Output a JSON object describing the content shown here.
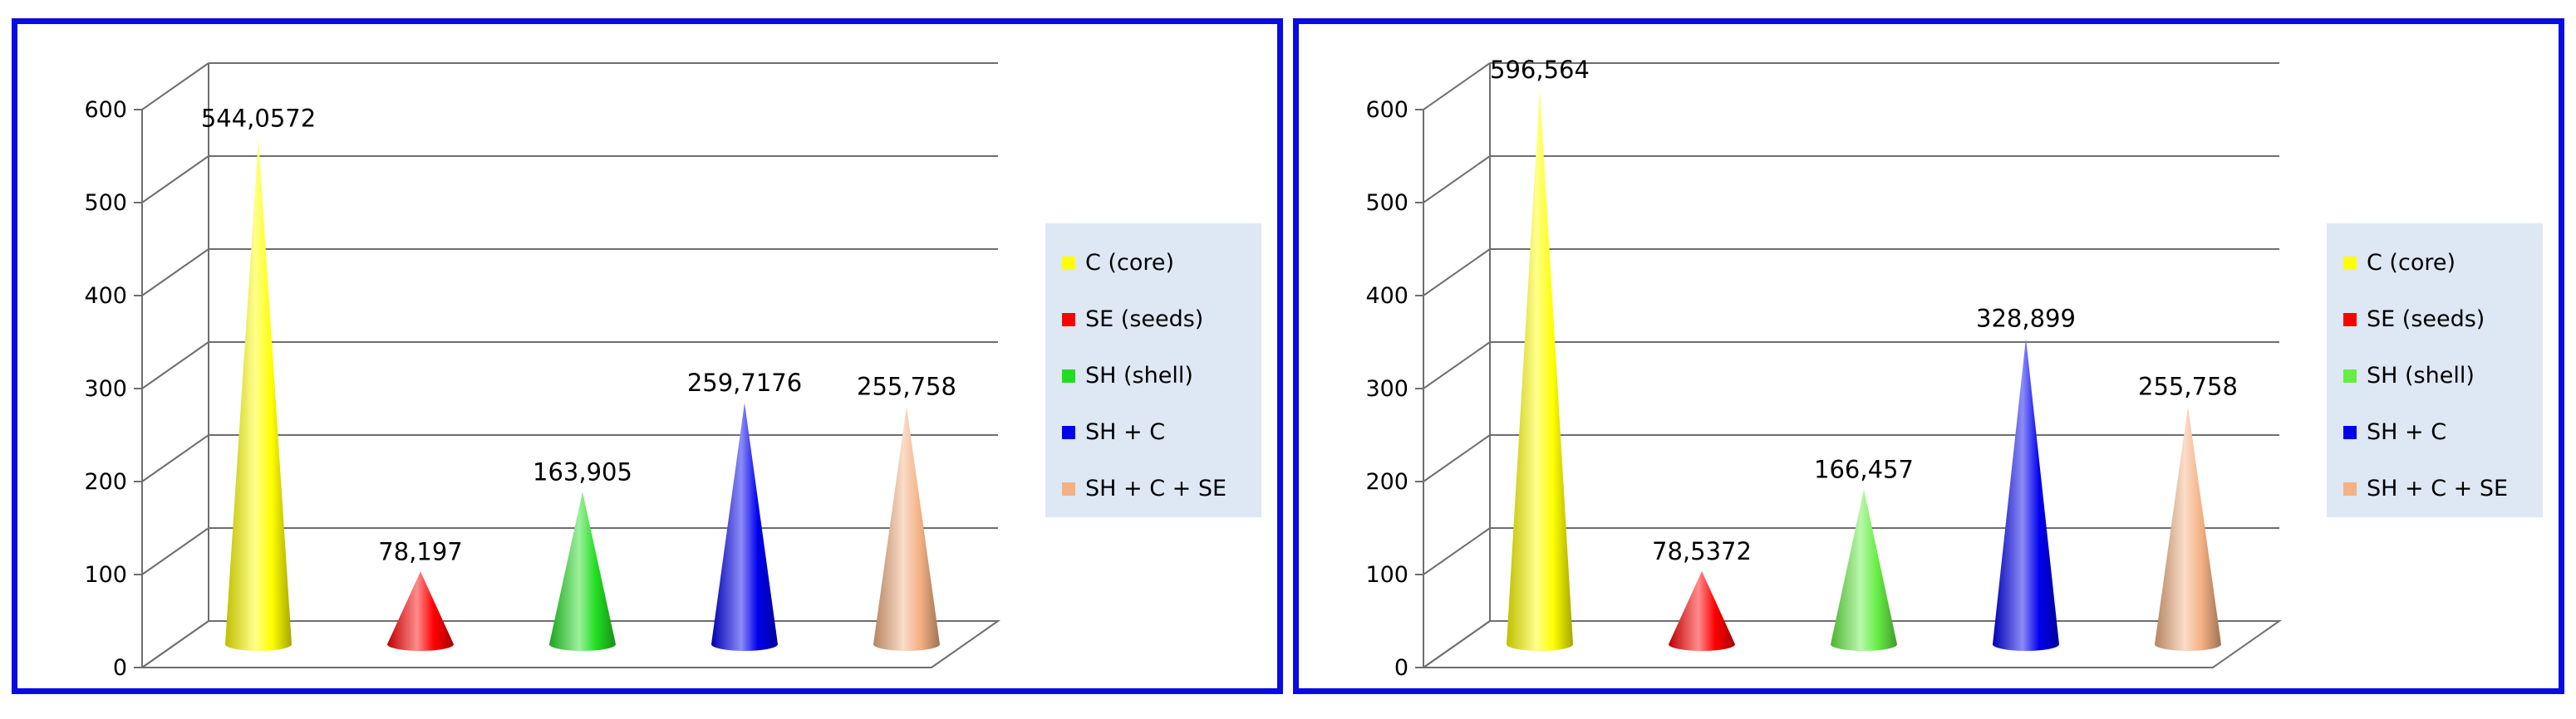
{
  "colors": {
    "frame": "#0a0ae6",
    "grid": "#6e6e6e",
    "legend_bg": "#dde8f4"
  },
  "chart_data": [
    {
      "type": "bar",
      "shape": "cone",
      "categories": [
        "C (core)",
        "SE (seeds)",
        "SH (shell)",
        "SH + C",
        "SH + C + SE"
      ],
      "values": [
        544.0572,
        78.197,
        163.905,
        259.7176,
        255.758
      ],
      "value_labels": [
        "544,0572",
        "78,197",
        "163,905",
        "259,7176",
        "255,758"
      ],
      "colors": [
        "#ffff00",
        "#ff0000",
        "#22dd22",
        "#0000ee",
        "#f4b183"
      ],
      "yticks": [
        "0",
        "100",
        "200",
        "300",
        "400",
        "500",
        "600"
      ],
      "ylim": [
        0,
        600
      ],
      "grid": true,
      "legend_position": "right",
      "title": "",
      "xlabel": "",
      "ylabel": ""
    },
    {
      "type": "bar",
      "shape": "cone",
      "categories": [
        "C (core)",
        "SE (seeds)",
        "SH (shell)",
        "SH + C",
        "SH + C + SE"
      ],
      "values": [
        596.564,
        78.5372,
        166.457,
        328.899,
        255.758
      ],
      "value_labels": [
        "596,564",
        "78,5372",
        "166,457",
        "328,899",
        "255,758"
      ],
      "colors": [
        "#ffff00",
        "#ff0000",
        "#66ee44",
        "#0000ee",
        "#f4b183"
      ],
      "yticks": [
        "0",
        "100",
        "200",
        "300",
        "400",
        "500",
        "600"
      ],
      "ylim": [
        0,
        600
      ],
      "grid": true,
      "legend_position": "right",
      "title": "",
      "xlabel": "",
      "ylabel": ""
    }
  ]
}
